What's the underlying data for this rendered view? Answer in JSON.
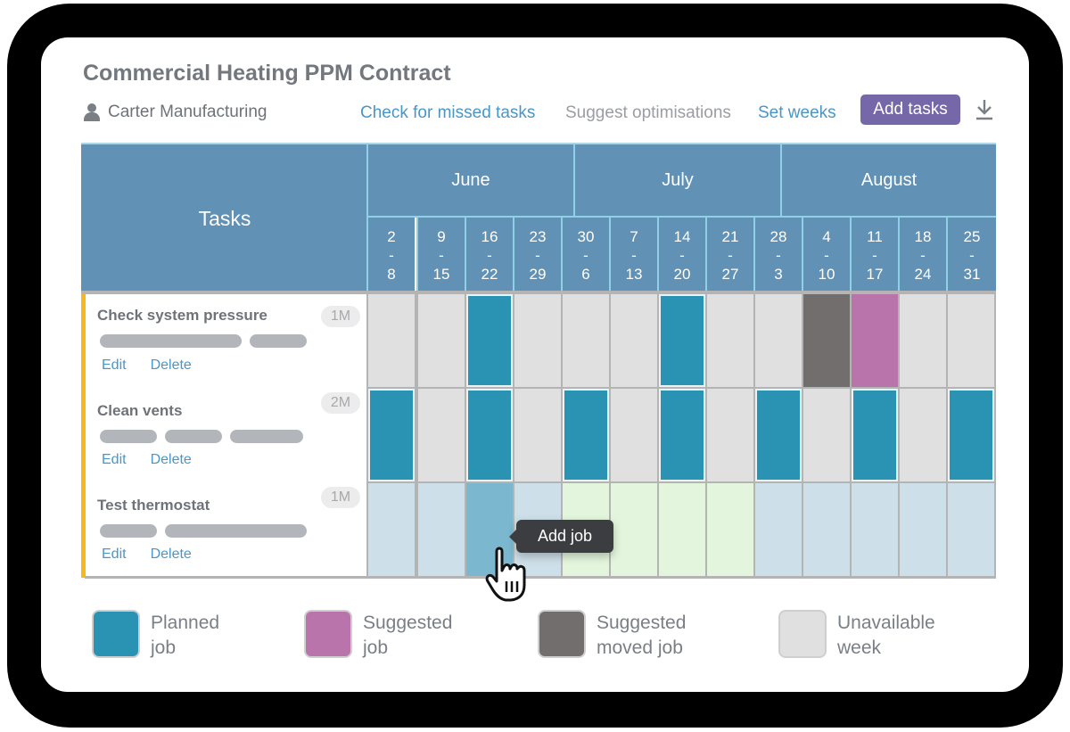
{
  "header": {
    "title": "Commercial Heating PPM Contract",
    "client": "Carter Manufacturing",
    "actions": {
      "check_missed": "Check for missed tasks",
      "suggest": "Suggest optimisations",
      "set_weeks": "Set weeks",
      "add_tasks": "Add tasks"
    }
  },
  "table": {
    "tasks_header": "Tasks",
    "months": [
      {
        "label": "June"
      },
      {
        "label": "July"
      },
      {
        "label": "August"
      }
    ],
    "weeks": [
      {
        "start": "2",
        "sep": "-",
        "end": "8"
      },
      {
        "start": "9",
        "sep": "-",
        "end": "15"
      },
      {
        "start": "16",
        "sep": "-",
        "end": "22"
      },
      {
        "start": "23",
        "sep": "-",
        "end": "29"
      },
      {
        "start": "30",
        "sep": "-",
        "end": "6"
      },
      {
        "start": "7",
        "sep": "-",
        "end": "13"
      },
      {
        "start": "14",
        "sep": "-",
        "end": "20"
      },
      {
        "start": "21",
        "sep": "-",
        "end": "27"
      },
      {
        "start": "28",
        "sep": "-",
        "end": "3"
      },
      {
        "start": "4",
        "sep": "-",
        "end": "10"
      },
      {
        "start": "11",
        "sep": "-",
        "end": "17"
      },
      {
        "start": "18",
        "sep": "-",
        "end": "24"
      },
      {
        "start": "25",
        "sep": "-",
        "end": "31"
      }
    ],
    "tasks": [
      {
        "name": "Check system pressure",
        "frequency": "1M",
        "edit": "Edit",
        "delete": "Delete",
        "cells": [
          "unavail",
          "unavail",
          "planned",
          "unavail",
          "unavail",
          "unavail",
          "planned",
          "unavail",
          "unavail",
          "moved",
          "suggested",
          "unavail",
          "unavail"
        ]
      },
      {
        "name": "Clean vents",
        "frequency": "2M",
        "edit": "Edit",
        "delete": "Delete",
        "cells": [
          "planned",
          "unavail",
          "planned",
          "unavail",
          "planned",
          "unavail",
          "planned",
          "unavail",
          "planned",
          "unavail",
          "planned",
          "unavail",
          "planned"
        ]
      },
      {
        "name": "Test thermostat",
        "frequency": "1M",
        "edit": "Edit",
        "delete": "Delete",
        "cells": [
          "avail",
          "avail",
          "hover",
          "avail",
          "green",
          "green",
          "green",
          "green",
          "avail",
          "avail",
          "avail",
          "avail",
          "avail"
        ]
      }
    ]
  },
  "tooltip": {
    "label": "Add job"
  },
  "legend": [
    {
      "line1": "Planned",
      "line2": "job",
      "color": "#2a93b4"
    },
    {
      "line1": "Suggested",
      "line2": "job",
      "color": "#b874ab"
    },
    {
      "line1": "Suggested",
      "line2": "moved job",
      "color": "#726e6d"
    },
    {
      "line1": "Unavailable",
      "line2": "week",
      "color": "#e0e0e0"
    }
  ],
  "colors": {
    "header_blue": "#6191b4",
    "planned": "#2a93b4",
    "suggested": "#b874ab",
    "moved": "#726e6d",
    "unavailable": "#e0e0e0",
    "available": "#cddfe8",
    "highlight_green": "#e3f6dd",
    "accent_purple": "#7668a8",
    "task_accent": "#f8b81d"
  }
}
